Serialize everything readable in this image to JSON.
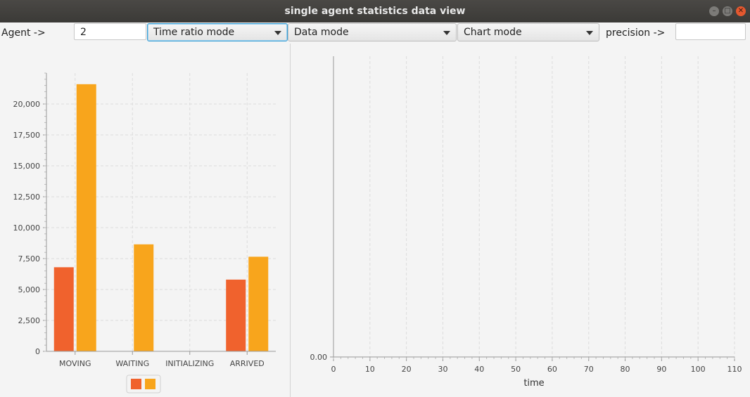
{
  "window": {
    "title": "single agent statistics data view"
  },
  "toolbar": {
    "agent_label": "Agent ->",
    "agent_value": "2",
    "mode_select": "Time ratio mode",
    "data_select": "Data mode",
    "chart_select": "Chart mode",
    "precision_label": "precision ->",
    "precision_value": ""
  },
  "chart_data": [
    {
      "type": "bar",
      "categories": [
        "MOVING",
        "WAITING",
        "INITIALIZING",
        "ARRIVED"
      ],
      "series": [
        {
          "color": "#f0622d",
          "values": [
            6800,
            0,
            0,
            5800
          ]
        },
        {
          "color": "#f8a51c",
          "values": [
            21600,
            8650,
            0,
            7650
          ]
        }
      ],
      "ylim": [
        0,
        22500
      ],
      "yticks": [
        "0",
        "2,500",
        "5,000",
        "7,500",
        "10,000",
        "12,500",
        "15,000",
        "17,500",
        "20,000"
      ],
      "legend": "bottom",
      "grid": true
    },
    {
      "type": "line",
      "xlabel": "time",
      "xlim": [
        0,
        110
      ],
      "xticks": [
        "0",
        "10",
        "20",
        "30",
        "40",
        "50",
        "60",
        "70",
        "80",
        "90",
        "100",
        "110"
      ],
      "yticks": [
        "0.00"
      ],
      "series": [],
      "grid": true
    }
  ]
}
